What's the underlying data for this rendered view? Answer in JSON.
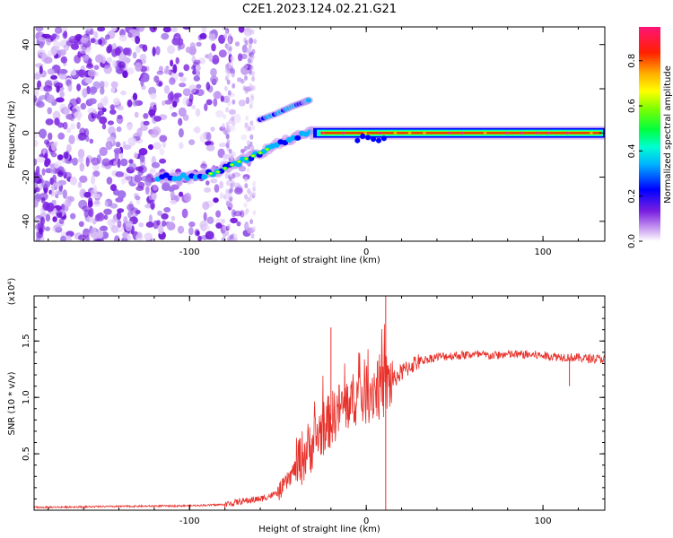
{
  "title": "C2E1.2023.124.02.21.G21",
  "chart_data": [
    {
      "type": "heatmap",
      "title": "C2E1.2023.124.02.21.G21",
      "xlabel": "Height of straight line (km)",
      "ylabel": "Frequency (Hz)",
      "xlim": [
        -188,
        135
      ],
      "ylim": [
        -49,
        48
      ],
      "x_ticks": [
        -100,
        0,
        100
      ],
      "y_ticks": [
        -40,
        -20,
        0,
        20,
        40
      ],
      "colorbar": {
        "label": "Normalized spectral amplitude",
        "range": [
          0,
          0.95
        ],
        "ticks": [
          0.0,
          0.2,
          0.4,
          0.6,
          0.8
        ],
        "colors": [
          "#ffffff",
          "#8a2be2",
          "#0000ff",
          "#00ffff",
          "#00ff00",
          "#ffff00",
          "#ff0000",
          "#ff1493"
        ]
      },
      "features": {
        "noise_region_x": [
          -188,
          -65
        ],
        "main_track": [
          {
            "x": -118,
            "freq": -20
          },
          {
            "x": -100,
            "freq": -20
          },
          {
            "x": -85,
            "freq": -18
          },
          {
            "x": -75,
            "freq": -14
          },
          {
            "x": -60,
            "freq": -9
          },
          {
            "x": -50,
            "freq": -5
          },
          {
            "x": -40,
            "freq": -2
          },
          {
            "x": -30,
            "freq": 1
          },
          {
            "x": -20,
            "freq": 0
          },
          {
            "x": 0,
            "freq": 0
          },
          {
            "x": 50,
            "freq": 0
          },
          {
            "x": 100,
            "freq": 0
          },
          {
            "x": 135,
            "freq": 0
          }
        ],
        "upper_branch": [
          {
            "x": -60,
            "freq": 6
          },
          {
            "x": -50,
            "freq": 9
          },
          {
            "x": -42,
            "freq": 12
          },
          {
            "x": -35,
            "freq": 14
          },
          {
            "x": -32,
            "freq": 15
          }
        ]
      }
    },
    {
      "type": "line",
      "xlabel": "Height of straight line (km)",
      "ylabel": "SNR (10 * v/v)",
      "y_multiplier": "(x10⁴)",
      "xlim": [
        -188,
        135
      ],
      "ylim": [
        0,
        1.9
      ],
      "x_ticks": [
        -100,
        0,
        100
      ],
      "y_ticks": [
        0.5,
        1.0,
        1.5
      ],
      "series": [
        {
          "color": "#e8302a",
          "x": [
            -188,
            -160,
            -130,
            -100,
            -80,
            -70,
            -60,
            -50,
            -45,
            -40,
            -35,
            -30,
            -25,
            -20,
            -15,
            -10,
            -5,
            0,
            5,
            10,
            15,
            20,
            25,
            30,
            40,
            50,
            60,
            70,
            80,
            90,
            100,
            110,
            120,
            135
          ],
          "y": [
            0.025,
            0.03,
            0.035,
            0.04,
            0.05,
            0.08,
            0.1,
            0.15,
            0.25,
            0.38,
            0.5,
            0.6,
            0.72,
            0.8,
            0.9,
            0.95,
            1.0,
            1.05,
            1.08,
            1.1,
            1.15,
            1.22,
            1.28,
            1.32,
            1.36,
            1.37,
            1.38,
            1.37,
            1.38,
            1.38,
            1.37,
            1.36,
            1.35,
            1.34
          ]
        }
      ],
      "spikes": [
        {
          "x": -20,
          "y": 1.62
        },
        {
          "x": 11,
          "y": 1.9
        },
        {
          "x": 11,
          "y": 0.0
        },
        {
          "x": 115,
          "y": 1.1
        }
      ]
    }
  ]
}
